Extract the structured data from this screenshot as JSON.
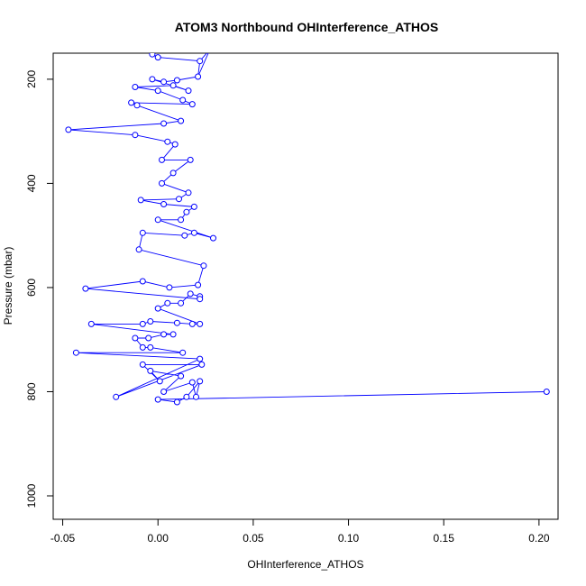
{
  "chart_data": {
    "type": "scatter",
    "title": "ATOM3 Northbound OHInterference_ATHOS",
    "xlabel": "OHInterference_ATHOS",
    "ylabel": "Pressure (mbar)",
    "xlim": [
      -0.055,
      0.21
    ],
    "ylim": [
      1045,
      150
    ],
    "y_axis_inverted": true,
    "x_ticks": [
      -0.05,
      0.0,
      0.05,
      0.1,
      0.15,
      0.2
    ],
    "x_tick_labels": [
      "-0.05",
      "0.00",
      "0.05",
      "0.10",
      "0.15",
      "0.20"
    ],
    "y_ticks": [
      200,
      400,
      600,
      800,
      1000
    ],
    "y_tick_labels": [
      "200",
      "400",
      "600",
      "800",
      "1000"
    ],
    "grid": false,
    "legend": "none",
    "colors": {
      "series": "#0000ff",
      "axes": "#000000",
      "background": "#ffffff"
    },
    "series": [
      {
        "style": "line-with-open-circles",
        "points": [
          {
            "x": 0.0,
            "y": 815
          },
          {
            "x": 0.01,
            "y": 820
          },
          {
            "x": 0.015,
            "y": 810
          },
          {
            "x": 0.02,
            "y": 810
          },
          {
            "x": 0.003,
            "y": 800
          },
          {
            "x": -0.022,
            "y": 810
          },
          {
            "x": 0.204,
            "y": 800
          },
          {
            "x": 0.022,
            "y": 780
          },
          {
            "x": 0.018,
            "y": 782
          },
          {
            "x": 0.012,
            "y": 770
          },
          {
            "x": -0.004,
            "y": 760
          },
          {
            "x": 0.001,
            "y": 780
          },
          {
            "x": -0.008,
            "y": 748
          },
          {
            "x": 0.023,
            "y": 748
          },
          {
            "x": 0.022,
            "y": 737
          },
          {
            "x": -0.043,
            "y": 725
          },
          {
            "x": 0.013,
            "y": 725
          },
          {
            "x": -0.004,
            "y": 715
          },
          {
            "x": -0.008,
            "y": 715
          },
          {
            "x": -0.012,
            "y": 697
          },
          {
            "x": -0.005,
            "y": 697
          },
          {
            "x": 0.003,
            "y": 690
          },
          {
            "x": 0.008,
            "y": 690
          },
          {
            "x": -0.035,
            "y": 670
          },
          {
            "x": -0.008,
            "y": 670
          },
          {
            "x": -0.004,
            "y": 665
          },
          {
            "x": 0.01,
            "y": 668
          },
          {
            "x": 0.018,
            "y": 670
          },
          {
            "x": 0.022,
            "y": 670
          },
          {
            "x": 0.0,
            "y": 640
          },
          {
            "x": 0.005,
            "y": 630
          },
          {
            "x": 0.012,
            "y": 630
          },
          {
            "x": 0.017,
            "y": 612
          },
          {
            "x": 0.022,
            "y": 617
          },
          {
            "x": 0.022,
            "y": 622
          },
          {
            "x": -0.038,
            "y": 602
          },
          {
            "x": -0.008,
            "y": 588
          },
          {
            "x": 0.006,
            "y": 600
          },
          {
            "x": 0.021,
            "y": 595
          },
          {
            "x": 0.024,
            "y": 558
          },
          {
            "x": -0.01,
            "y": 527
          },
          {
            "x": -0.008,
            "y": 495
          },
          {
            "x": 0.014,
            "y": 500
          },
          {
            "x": 0.019,
            "y": 495
          },
          {
            "x": 0.029,
            "y": 505
          },
          {
            "x": 0.0,
            "y": 470
          },
          {
            "x": 0.012,
            "y": 470
          },
          {
            "x": 0.015,
            "y": 455
          },
          {
            "x": 0.019,
            "y": 445
          },
          {
            "x": 0.003,
            "y": 440
          },
          {
            "x": -0.009,
            "y": 432
          },
          {
            "x": 0.011,
            "y": 430
          },
          {
            "x": 0.016,
            "y": 418
          },
          {
            "x": 0.002,
            "y": 400
          },
          {
            "x": 0.008,
            "y": 380
          },
          {
            "x": 0.017,
            "y": 355
          },
          {
            "x": 0.002,
            "y": 355
          },
          {
            "x": 0.009,
            "y": 325
          },
          {
            "x": 0.005,
            "y": 320
          },
          {
            "x": -0.012,
            "y": 307
          },
          {
            "x": -0.047,
            "y": 297
          },
          {
            "x": 0.003,
            "y": 285
          },
          {
            "x": 0.012,
            "y": 280
          },
          {
            "x": -0.011,
            "y": 250
          },
          {
            "x": -0.014,
            "y": 245
          },
          {
            "x": 0.018,
            "y": 248
          },
          {
            "x": 0.013,
            "y": 240
          },
          {
            "x": 0.0,
            "y": 222
          },
          {
            "x": -0.012,
            "y": 215
          },
          {
            "x": 0.008,
            "y": 212
          },
          {
            "x": 0.016,
            "y": 222
          },
          {
            "x": -0.003,
            "y": 200
          },
          {
            "x": 0.003,
            "y": 205
          },
          {
            "x": 0.01,
            "y": 202
          },
          {
            "x": 0.021,
            "y": 195
          },
          {
            "x": 0.022,
            "y": 165
          },
          {
            "x": 0.0,
            "y": 158
          },
          {
            "x": -0.003,
            "y": 152
          }
        ],
        "path_order": [
          6,
          0,
          1,
          2,
          7,
          3,
          8,
          4,
          9,
          10,
          11,
          12,
          13,
          5,
          14,
          15,
          16,
          17,
          18,
          19,
          20,
          21,
          22,
          23,
          24,
          25,
          26,
          27,
          28,
          29,
          30,
          31,
          32,
          33,
          34,
          35,
          36,
          37,
          38,
          39,
          40,
          41,
          42,
          43,
          44,
          45,
          46,
          47,
          48,
          49,
          50,
          51,
          52,
          53,
          54,
          55,
          56,
          57,
          58,
          59,
          60,
          61,
          62,
          63,
          64,
          65,
          66,
          67,
          68,
          69,
          70,
          71,
          72,
          73,
          74,
          75,
          76,
          77
        ]
      }
    ]
  }
}
